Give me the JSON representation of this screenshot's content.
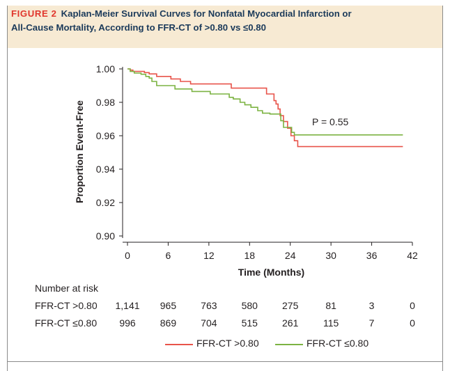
{
  "figure": {
    "label": "FIGURE 2",
    "title_line1": "Kaplan-Meier Survival Curves for Nonfatal Myocardial Infarction or",
    "title_line2": "All-Cause Mortality, According to FFR-CT of >0.80 vs ≤0.80"
  },
  "chart_data": {
    "type": "line",
    "xlabel": "Time (Months)",
    "ylabel": "Proportion Event-Free",
    "xlim": [
      0,
      42
    ],
    "ylim": [
      0.9,
      1.0
    ],
    "xticks": [
      "0",
      "6",
      "12",
      "18",
      "24",
      "30",
      "36",
      "42"
    ],
    "yticks": [
      "0.90",
      "0.92",
      "0.94",
      "0.96",
      "0.98",
      "1.00"
    ],
    "annotation": "P = 0.55",
    "series": [
      {
        "name": "FFR-CT >0.80",
        "color": "#e8534a",
        "x": [
          0,
          0.4,
          0.8,
          2.5,
          3.2,
          4.3,
          6.4,
          7.8,
          9.3,
          15.3,
          20.5,
          21.6,
          21.9,
          22.2,
          22.5,
          23.0,
          23.6,
          24.1,
          24.6,
          25.1,
          40.6
        ],
        "y": [
          1.0,
          0.9993,
          0.9985,
          0.9978,
          0.997,
          0.9955,
          0.994,
          0.9925,
          0.991,
          0.9885,
          0.985,
          0.981,
          0.979,
          0.976,
          0.972,
          0.9685,
          0.9645,
          0.96,
          0.957,
          0.9535,
          0.9535
        ]
      },
      {
        "name": "FFR-CT ≤0.80",
        "color": "#7cb342",
        "x": [
          0,
          0.4,
          1.0,
          2.0,
          2.7,
          3.2,
          3.6,
          4.3,
          7.0,
          9.5,
          12.2,
          15.0,
          15.6,
          16.6,
          17.3,
          18.2,
          19.2,
          19.9,
          21.0,
          22.6,
          23.0,
          24.2,
          24.6,
          40.6
        ],
        "y": [
          1.0,
          0.9985,
          0.9975,
          0.9968,
          0.9955,
          0.9945,
          0.9925,
          0.99,
          0.988,
          0.9865,
          0.985,
          0.983,
          0.982,
          0.98,
          0.9785,
          0.977,
          0.975,
          0.9735,
          0.973,
          0.969,
          0.965,
          0.962,
          0.9605,
          0.9605
        ]
      }
    ]
  },
  "risk_table": {
    "heading": "Number at risk",
    "rows": [
      {
        "label": "FFR-CT >0.80",
        "values": [
          "1,141",
          "965",
          "763",
          "580",
          "275",
          "81",
          "3",
          "0"
        ]
      },
      {
        "label": "FFR-CT ≤0.80",
        "values": [
          "996",
          "869",
          "704",
          "515",
          "261",
          "115",
          "7",
          "0"
        ]
      }
    ]
  },
  "legend": {
    "items": [
      {
        "label": "FFR-CT >0.80",
        "color": "#e8534a"
      },
      {
        "label": "FFR-CT ≤0.80",
        "color": "#7cb342"
      }
    ]
  }
}
